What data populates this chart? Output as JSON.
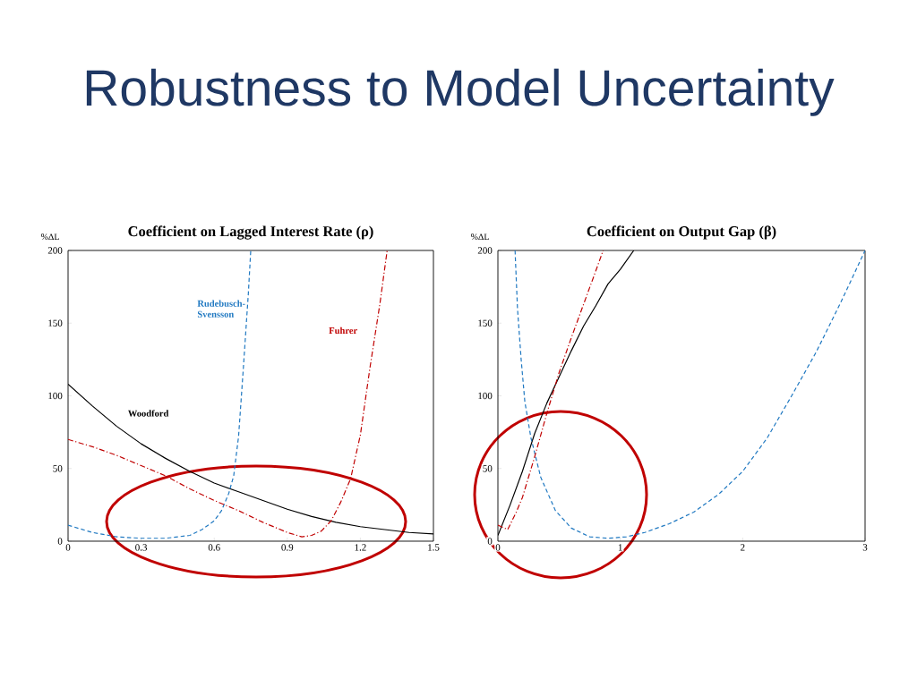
{
  "chart_data": [
    {
      "type": "line",
      "title": "Coefficient on Lagged Interest Rate (ρ)",
      "ylabel": "%ΔL",
      "annotations": [
        "Robustness to Model Uncertainty"
      ],
      "xlim": [
        0,
        1.5
      ],
      "xticks": [
        0,
        0.3,
        0.6,
        0.9,
        1.2,
        1.5
      ],
      "ylim": [
        0,
        200
      ],
      "yticks": [
        0,
        50,
        100,
        150,
        200
      ],
      "series": [
        {
          "name": "Woodford",
          "color": "#000000",
          "line_style": "solid",
          "x": [
            0,
            0.1,
            0.2,
            0.3,
            0.4,
            0.5,
            0.6,
            0.7,
            0.8,
            0.9,
            1.0,
            1.1,
            1.2,
            1.3,
            1.4,
            1.5
          ],
          "values": [
            108,
            93,
            79,
            67,
            57,
            48,
            40,
            34,
            28,
            22,
            17,
            13,
            10,
            8,
            6,
            5
          ]
        },
        {
          "name": "Rudebusch-Svensson",
          "color": "#1f78c1",
          "line_style": "dashed",
          "x": [
            0,
            0.1,
            0.2,
            0.3,
            0.4,
            0.5,
            0.55,
            0.6,
            0.63,
            0.66,
            0.68,
            0.7,
            0.72,
            0.74,
            0.75
          ],
          "values": [
            11,
            6,
            3,
            2,
            2,
            4,
            8,
            14,
            21,
            33,
            45,
            72,
            120,
            170,
            200
          ]
        },
        {
          "name": "Fuhrer",
          "color": "#c00000",
          "line_style": "dashdot",
          "x": [
            0,
            0.1,
            0.2,
            0.3,
            0.4,
            0.5,
            0.6,
            0.7,
            0.8,
            0.9,
            0.96,
            1.0,
            1.04,
            1.08,
            1.12,
            1.16,
            1.2,
            1.24,
            1.28,
            1.31
          ],
          "values": [
            70,
            65,
            59,
            52,
            45,
            36,
            28,
            21,
            13,
            6,
            3,
            4,
            7,
            14,
            27,
            43,
            73,
            120,
            163,
            200
          ]
        }
      ]
    },
    {
      "type": "line",
      "title": "Coefficient on Output Gap (β)",
      "ylabel": "%ΔL",
      "xlim": [
        0,
        3
      ],
      "xticks": [
        0,
        1,
        2,
        3
      ],
      "ylim": [
        0,
        200
      ],
      "yticks": [
        0,
        50,
        100,
        150,
        200
      ],
      "series": [
        {
          "color": "#000000",
          "line_style": "solid",
          "x": [
            0,
            0.1,
            0.2,
            0.3,
            0.4,
            0.5,
            0.6,
            0.7,
            0.8,
            0.9,
            1.0,
            1.11
          ],
          "values": [
            4,
            25,
            48,
            74,
            95,
            113,
            131,
            148,
            162,
            177,
            187,
            200
          ]
        },
        {
          "color": "#1f78c1",
          "line_style": "dashed",
          "x": [
            0.14,
            0.16,
            0.19,
            0.22,
            0.27,
            0.35,
            0.47,
            0.6,
            0.75,
            0.9,
            1.05,
            1.2,
            1.4,
            1.6,
            1.8,
            2.0,
            2.2,
            2.4,
            2.6,
            2.8,
            3.0
          ],
          "values": [
            200,
            160,
            125,
            96,
            71,
            44,
            21,
            9,
            3,
            2,
            3,
            6,
            12,
            20,
            32,
            48,
            71,
            100,
            130,
            164,
            200
          ]
        },
        {
          "color": "#c00000",
          "line_style": "dashdot",
          "x": [
            0,
            0.08,
            0.15,
            0.2,
            0.25,
            0.3,
            0.4,
            0.5,
            0.6,
            0.7,
            0.8,
            0.86
          ],
          "values": [
            11,
            8,
            20,
            30,
            44,
            58,
            88,
            116,
            140,
            163,
            186,
            200
          ]
        }
      ]
    }
  ]
}
